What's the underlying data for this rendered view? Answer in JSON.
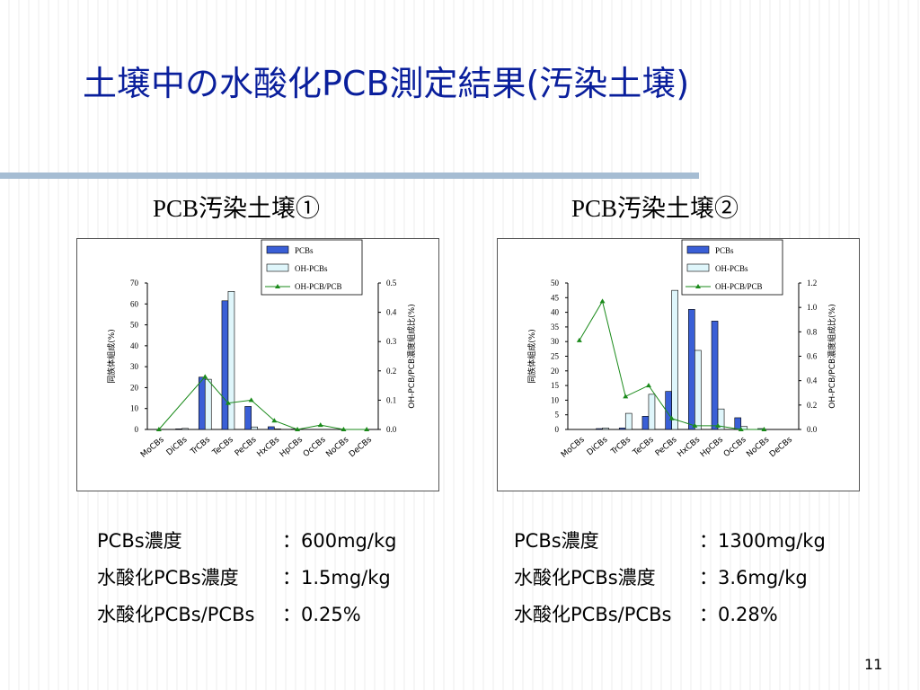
{
  "slide": {
    "title": "土壌中の水酸化PCB測定結果(汚染土壌)",
    "page_number": "11"
  },
  "chart_data": [
    {
      "type": "bar",
      "title": "PCB汚染土壌①",
      "categories": [
        "MoCBs",
        "DiCBs",
        "TrCBs",
        "TeCBs",
        "PeCBs",
        "HxCBs",
        "HpCBs",
        "OcCBs",
        "NoCBs",
        "DeCBs"
      ],
      "series": [
        {
          "name": "PCBs",
          "type": "bar",
          "axis": "left",
          "color": "#3a5fd6",
          "values": [
            0,
            0.3,
            25,
            61.5,
            11,
            1.3,
            0.2,
            0,
            0,
            0
          ]
        },
        {
          "name": "OH-PCBs",
          "type": "bar",
          "axis": "left",
          "color": "#dff6fb",
          "values": [
            0,
            0.5,
            24,
            66,
            1.2,
            0.3,
            0.1,
            0,
            0,
            0
          ]
        },
        {
          "name": "OH-PCB/PCB",
          "type": "line",
          "axis": "right",
          "color": "#1a8a1a",
          "values": [
            0,
            null,
            0.18,
            0.09,
            0.1,
            0.03,
            0.0,
            0.015,
            0,
            0
          ]
        }
      ],
      "ylabel": "同族体組成(%)",
      "ylim": [
        0,
        70
      ],
      "yticks": [
        0,
        10,
        20,
        30,
        40,
        50,
        60,
        70
      ],
      "y2label": "OH-PCB/PCB濃度組成比(%)",
      "y2lim": [
        0,
        0.5
      ],
      "y2ticks": [
        "0.0",
        "0.1",
        "0.2",
        "0.3",
        "0.4",
        "0.5"
      ],
      "grid": false,
      "legend": "top-right"
    },
    {
      "type": "bar",
      "title": "PCB汚染土壌②",
      "categories": [
        "MoCBs",
        "DiCBs",
        "TrCBs",
        "TeCBs",
        "PeCBs",
        "HxCBs",
        "HpCBs",
        "OcCBs",
        "NoCBs",
        "DeCBs"
      ],
      "series": [
        {
          "name": "PCBs",
          "type": "bar",
          "axis": "left",
          "color": "#3a5fd6",
          "values": [
            0,
            0.3,
            0.5,
            4.5,
            13,
            41,
            37,
            4,
            0.3,
            0
          ]
        },
        {
          "name": "OH-PCBs",
          "type": "bar",
          "axis": "left",
          "color": "#dff6fb",
          "values": [
            0,
            0.5,
            5.5,
            12,
            47.5,
            27,
            7,
            1,
            0,
            0
          ]
        },
        {
          "name": "OH-PCB/PCB",
          "type": "line",
          "axis": "right",
          "color": "#1a8a1a",
          "values": [
            0.73,
            1.05,
            0.27,
            0.36,
            0.09,
            0.03,
            0.03,
            0.0,
            0.0,
            null
          ]
        }
      ],
      "ylabel": "同族体組成(%)",
      "ylim": [
        0,
        50
      ],
      "yticks": [
        0,
        5,
        10,
        15,
        20,
        25,
        30,
        35,
        40,
        45,
        50
      ],
      "y2label": "OH-PCB/PCB濃度組成比(%)",
      "y2lim": [
        0,
        1.2
      ],
      "y2ticks": [
        "0.0",
        "0.2",
        "0.4",
        "0.6",
        "0.8",
        "1.0",
        "1.2"
      ],
      "grid": false,
      "legend": "top-right"
    }
  ],
  "summaries": [
    {
      "rows": [
        {
          "label": "PCBs濃度",
          "value": "：600mg/kg"
        },
        {
          "label": "水酸化PCBs濃度",
          "value": "：1.5mg/kg"
        },
        {
          "label": "水酸化PCBs/PCBs",
          "value": "：0.25%"
        }
      ]
    },
    {
      "rows": [
        {
          "label": "PCBs濃度",
          "value": "：1300mg/kg"
        },
        {
          "label": "水酸化PCBs濃度",
          "value": "：3.6mg/kg"
        },
        {
          "label": "水酸化PCBs/PCBs",
          "value": "：0.28%"
        }
      ]
    }
  ]
}
